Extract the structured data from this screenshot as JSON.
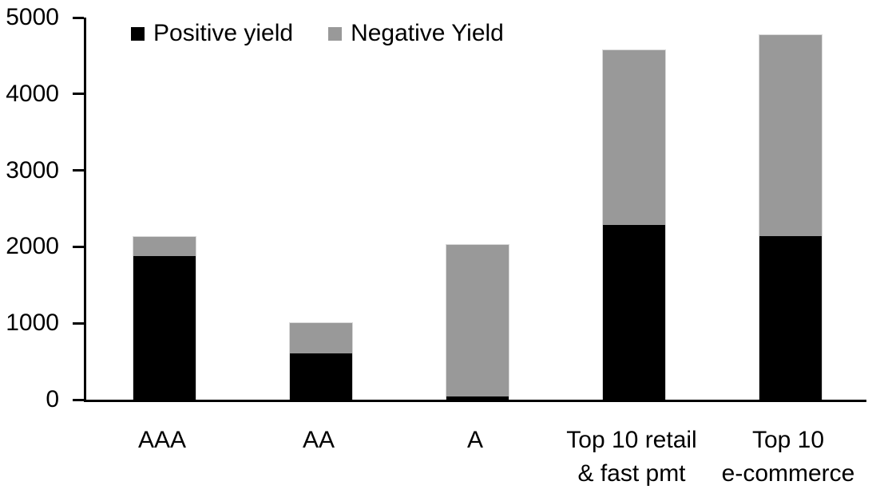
{
  "chart_data": {
    "type": "bar",
    "stacked": true,
    "title": "",
    "xlabel": "",
    "ylabel": "",
    "categories": [
      "AAA",
      "AA",
      "A",
      "Top 10 retail\n& fast pmt",
      "Top 10\ne-commerce"
    ],
    "series": [
      {
        "name": "Positive yield",
        "color": "#000000",
        "values": [
          1880,
          610,
          40,
          2290,
          2140
        ]
      },
      {
        "name": "Negative Yield",
        "color": "#999999",
        "values": [
          250,
          390,
          1990,
          2280,
          2630
        ]
      }
    ],
    "totals": [
      2130,
      1000,
      2030,
      4570,
      4770
    ],
    "ylim": [
      0,
      5000
    ],
    "yticks": [
      0,
      1000,
      2000,
      3000,
      4000,
      5000
    ],
    "grid": "off",
    "legend_position": "top",
    "axis_color": "#000000",
    "background_color": "#ffffff"
  }
}
